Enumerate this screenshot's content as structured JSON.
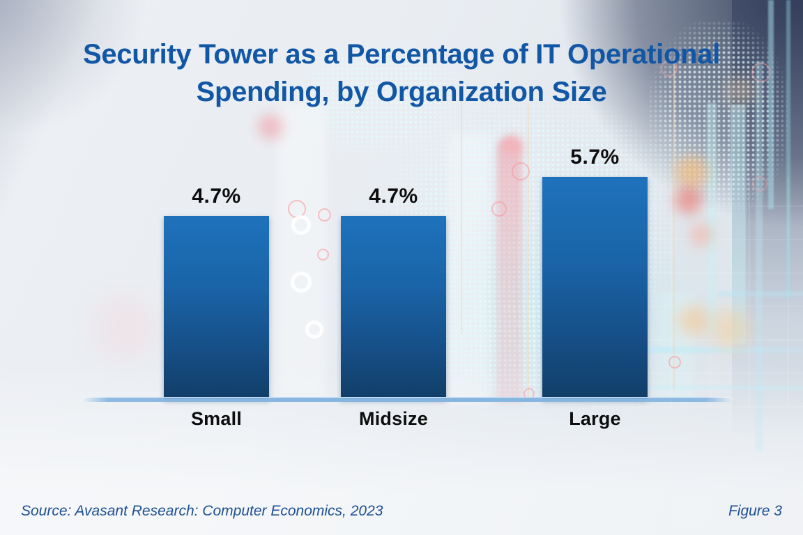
{
  "title": {
    "line1": "Security Tower as a Percentage of IT Operational",
    "line2": "Spending, by Organization Size"
  },
  "chart_data": {
    "type": "bar",
    "title": "Security Tower as a Percentage of IT Operational Spending, by Organization Size",
    "categories": [
      "Small",
      "Midsize",
      "Large"
    ],
    "values": [
      4.7,
      4.7,
      5.7
    ],
    "value_labels": [
      "4.7%",
      "4.7%",
      "5.7%"
    ],
    "xlabel": "",
    "ylabel": "",
    "ylim": [
      0,
      6
    ],
    "grid": false,
    "legend": false,
    "bar_color_top": "#1e72bb",
    "bar_color_bottom": "#123e68"
  },
  "footer": {
    "source": "Source: Avasant Research: Computer Economics, 2023",
    "figure": "Figure 3"
  },
  "colors": {
    "title_blue": "#1257a5",
    "bar_top": "#1e72bb",
    "bar_bottom": "#123e68",
    "baseline_blue": "#84b4e0",
    "data_label": "#0d0d0d",
    "source_blue": "#1d4f93"
  }
}
